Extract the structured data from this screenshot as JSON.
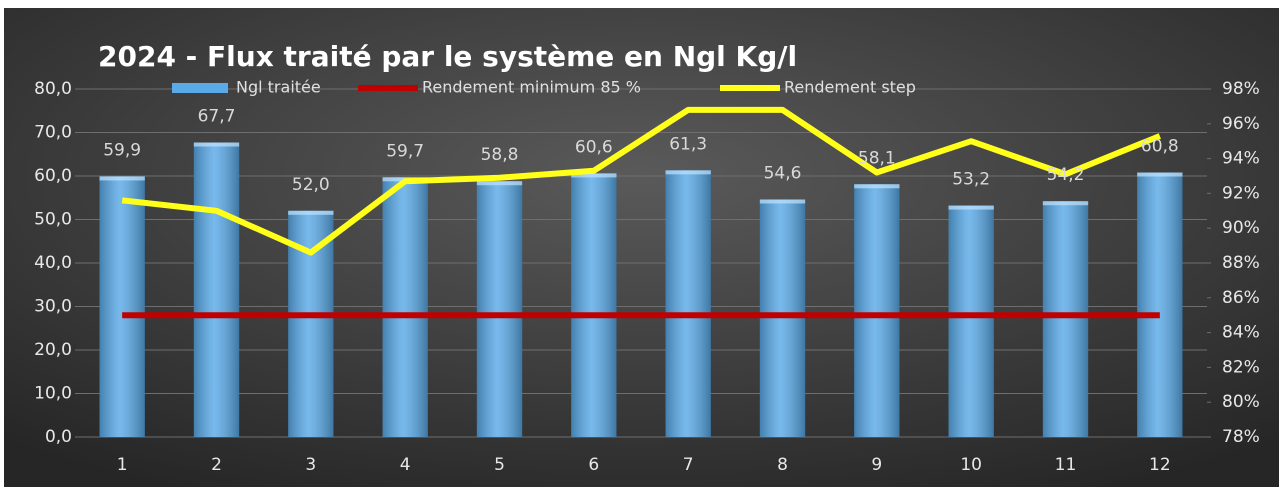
{
  "chart_data": {
    "type": "bar",
    "title": "2024 - Flux traité par le système en Ngl Kg/l",
    "categories": [
      "1",
      "2",
      "3",
      "4",
      "5",
      "6",
      "7",
      "8",
      "9",
      "10",
      "11",
      "12"
    ],
    "series": [
      {
        "name": "Ngl traitée",
        "type": "bar",
        "color": "#5aaae8",
        "values": [
          59.9,
          67.7,
          52.0,
          59.7,
          58.8,
          60.6,
          61.3,
          54.6,
          58.1,
          53.2,
          54.2,
          60.8
        ],
        "value_labels": [
          "59,9",
          "67,7",
          "52,0",
          "59,7",
          "58,8",
          "60,6",
          "61,3",
          "54,6",
          "58,1",
          "53,2",
          "54,2",
          "60,8"
        ]
      },
      {
        "name": "Rendement minimum 85 %",
        "type": "line",
        "axis": "y2",
        "color": "#c00000",
        "values": [
          85,
          85,
          85,
          85,
          85,
          85,
          85,
          85,
          85,
          85,
          85,
          85
        ]
      },
      {
        "name": "Rendement step",
        "type": "line",
        "axis": "y2",
        "color": "#ffff1a",
        "values": [
          91.6,
          91.0,
          88.6,
          92.7,
          92.9,
          93.3,
          96.8,
          96.8,
          93.2,
          95.0,
          93.1,
          95.3
        ]
      }
    ],
    "ylim": [
      0,
      80
    ],
    "yticks": [
      {
        "value": 0,
        "label": "0,0"
      },
      {
        "value": 10,
        "label": "10,0"
      },
      {
        "value": 20,
        "label": "20,0"
      },
      {
        "value": 30,
        "label": "30,0"
      },
      {
        "value": 40,
        "label": "40,0"
      },
      {
        "value": 50,
        "label": "50,0"
      },
      {
        "value": 60,
        "label": "60,0"
      },
      {
        "value": 70,
        "label": "70,0"
      },
      {
        "value": 80,
        "label": "80,0"
      }
    ],
    "y2lim": [
      78,
      98
    ],
    "y2ticks": [
      {
        "value": 78,
        "label": "78%"
      },
      {
        "value": 80,
        "label": "80%"
      },
      {
        "value": 82,
        "label": "82%"
      },
      {
        "value": 84,
        "label": "84%"
      },
      {
        "value": 86,
        "label": "86%"
      },
      {
        "value": 88,
        "label": "88%"
      },
      {
        "value": 90,
        "label": "90%"
      },
      {
        "value": 92,
        "label": "92%"
      },
      {
        "value": 94,
        "label": "94%"
      },
      {
        "value": 96,
        "label": "96%"
      },
      {
        "value": 98,
        "label": "98%"
      }
    ],
    "grid": true,
    "legend": "top"
  }
}
